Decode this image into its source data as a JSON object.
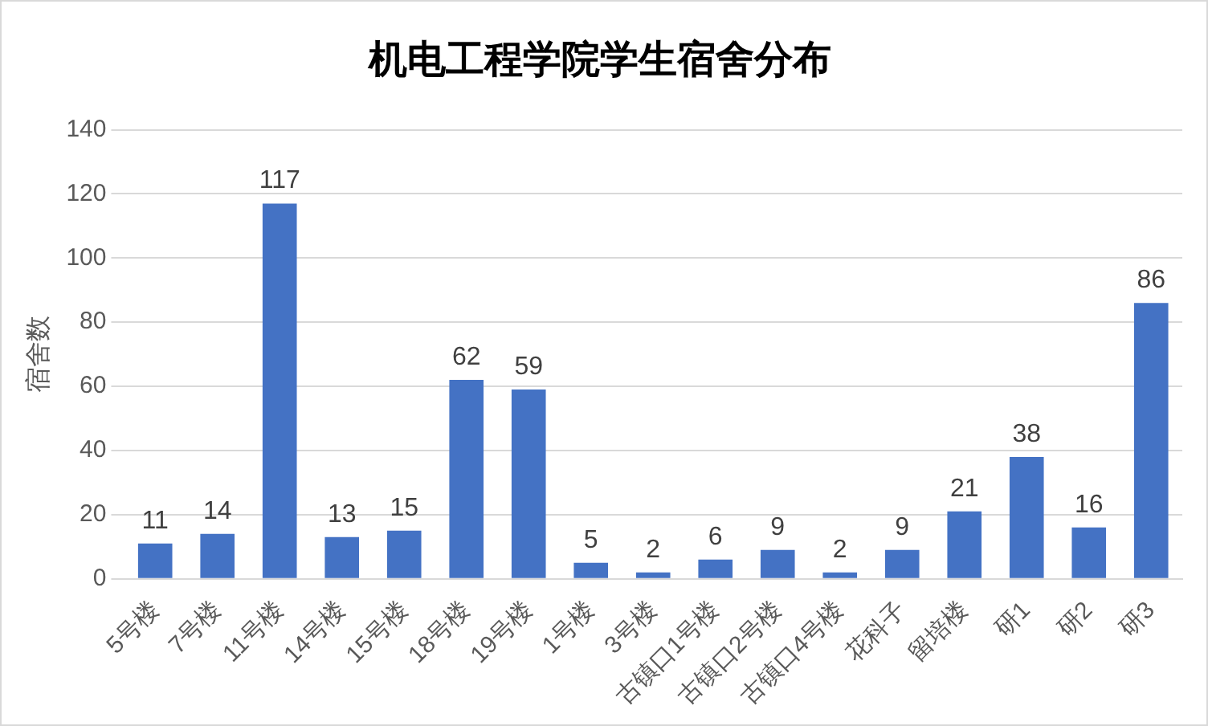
{
  "chart_data": {
    "type": "bar",
    "title": "机电工程学院学生宿舍分布",
    "ylabel": "宿舍数",
    "categories": [
      "5号楼",
      "7号楼",
      "11号楼",
      "14号楼",
      "15号楼",
      "18号楼",
      "19号楼",
      "1号楼",
      "3号楼",
      "古镇口1号楼",
      "古镇口2号楼",
      "古镇口4号楼",
      "花科子",
      "留培楼",
      "研1",
      "研2",
      "研3"
    ],
    "values": [
      11,
      14,
      117,
      13,
      15,
      62,
      59,
      5,
      2,
      6,
      9,
      2,
      9,
      21,
      38,
      16,
      86
    ],
    "color": "#4472c4",
    "ylim": [
      0,
      140
    ],
    "yticks": [
      0,
      20,
      40,
      60,
      80,
      100,
      120,
      140
    ],
    "grid": "y",
    "data_labels": true
  }
}
